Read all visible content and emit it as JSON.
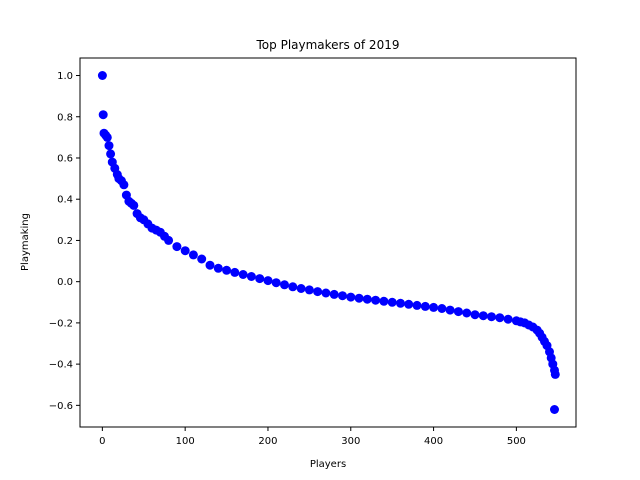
{
  "chart_data": {
    "type": "scatter",
    "title": "Top Playmakers of 2019",
    "xlabel": "Players",
    "ylabel": "Playmaking",
    "xlim": [
      -27,
      572
    ],
    "ylim": [
      -0.705,
      1.085
    ],
    "xticks": [
      0,
      100,
      200,
      300,
      400,
      500
    ],
    "yticks": [
      -0.6,
      -0.4,
      -0.2,
      0.0,
      0.2,
      0.4,
      0.6,
      0.8,
      1.0
    ],
    "ytick_labels": [
      "−0.6",
      "−0.4",
      "−0.2",
      "0.0",
      "0.2",
      "0.4",
      "0.6",
      "0.8",
      "1.0"
    ],
    "color": "#0000ff",
    "grid": false,
    "series": [
      {
        "x": [
          0,
          1,
          2,
          4,
          6,
          8,
          10,
          12,
          15,
          18,
          20,
          23,
          26,
          29,
          32,
          35,
          38,
          42,
          46,
          50,
          55,
          60,
          65,
          70,
          75,
          80,
          90,
          100,
          110,
          120,
          130,
          140,
          150,
          160,
          170,
          180,
          190,
          200,
          210,
          220,
          230,
          240,
          250,
          260,
          270,
          280,
          290,
          300,
          310,
          320,
          330,
          340,
          350,
          360,
          370,
          380,
          390,
          400,
          410,
          420,
          430,
          440,
          450,
          460,
          470,
          480,
          490,
          500,
          505,
          510,
          515,
          520,
          525,
          528,
          531,
          534,
          537,
          540,
          542,
          544,
          546,
          547
        ],
        "y": [
          1.0,
          0.81,
          0.72,
          0.71,
          0.7,
          0.66,
          0.62,
          0.58,
          0.55,
          0.52,
          0.5,
          0.49,
          0.47,
          0.42,
          0.39,
          0.38,
          0.37,
          0.33,
          0.31,
          0.3,
          0.28,
          0.26,
          0.25,
          0.24,
          0.22,
          0.2,
          0.17,
          0.15,
          0.13,
          0.11,
          0.08,
          0.065,
          0.055,
          0.045,
          0.035,
          0.025,
          0.015,
          0.005,
          -0.005,
          -0.015,
          -0.025,
          -0.033,
          -0.04,
          -0.048,
          -0.055,
          -0.062,
          -0.068,
          -0.075,
          -0.08,
          -0.085,
          -0.09,
          -0.095,
          -0.1,
          -0.105,
          -0.11,
          -0.115,
          -0.12,
          -0.125,
          -0.13,
          -0.138,
          -0.145,
          -0.152,
          -0.16,
          -0.165,
          -0.17,
          -0.175,
          -0.182,
          -0.19,
          -0.195,
          -0.2,
          -0.21,
          -0.22,
          -0.235,
          -0.25,
          -0.27,
          -0.29,
          -0.31,
          -0.34,
          -0.37,
          -0.4,
          -0.43,
          -0.45
        ]
      },
      {
        "x": [
          546
        ],
        "y": [
          -0.62
        ]
      }
    ]
  }
}
